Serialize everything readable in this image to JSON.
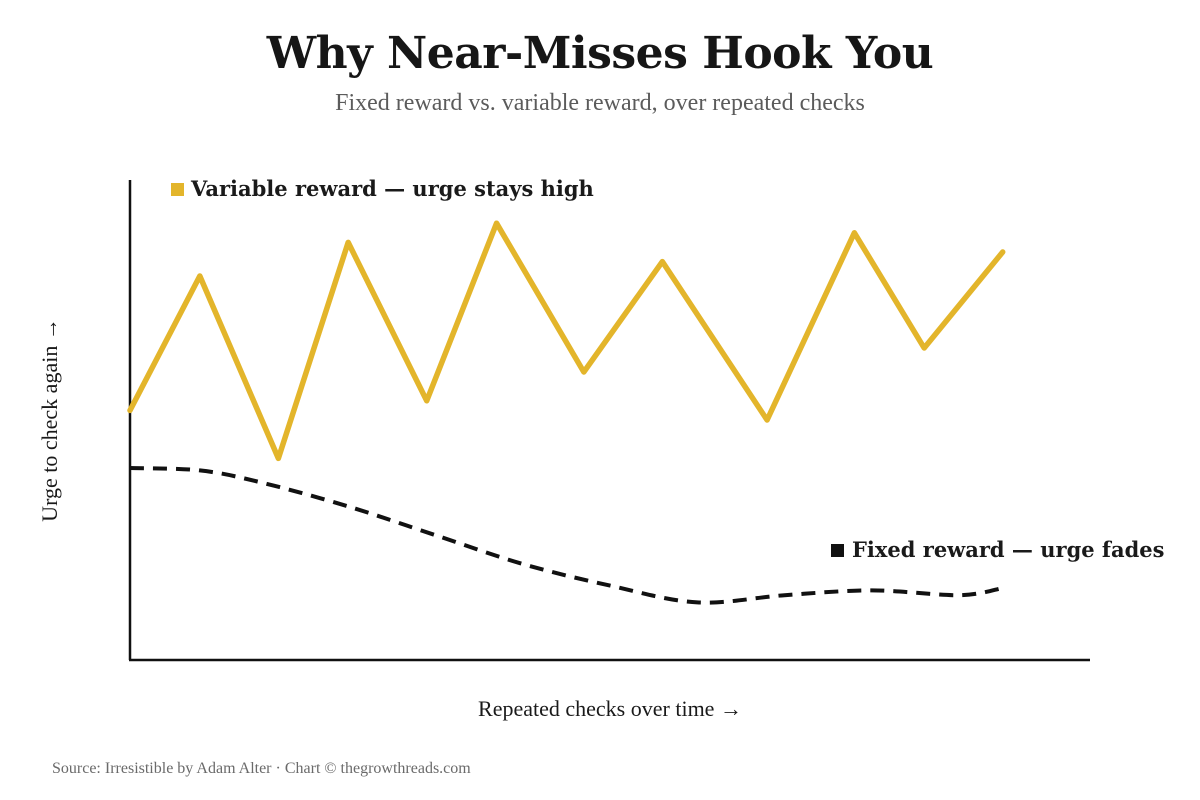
{
  "title": "Why Near-Misses Hook You",
  "subtitle": "Fixed reward vs. variable reward, over repeated checks",
  "source": "Source: Irresistible by Adam Alter · Chart © thegrowthreads.com",
  "colors": {
    "variable": "#e3b52b",
    "fixed": "#111111",
    "axis": "#111111"
  },
  "chart_data": {
    "type": "line",
    "title": "Why Near-Misses Hook You",
    "subtitle": "Fixed reward vs. variable reward, over repeated checks",
    "xlabel": "Repeated checks over time →",
    "ylabel": "Urge to check again →",
    "xlim": [
      0,
      11
    ],
    "ylim": [
      0,
      100
    ],
    "grid": false,
    "axis_ticks": false,
    "series": [
      {
        "name": "Variable reward — urge stays high",
        "style": "solid",
        "color": "#e3b52b",
        "x": [
          0,
          0.8,
          1.7,
          2.5,
          3.4,
          4.2,
          5.2,
          6.1,
          7.3,
          8.3,
          9.1,
          10
        ]
      },
      {
        "name": "Fixed reward — urge fades",
        "style": "dashed",
        "color": "#111111",
        "x": [
          0,
          0.8,
          1.5,
          2.5,
          3.5,
          4.5,
          5.5,
          6.5,
          7.5,
          8.5,
          9.5,
          10
        ]
      }
    ],
    "values": {
      "variable": [
        52,
        80,
        42,
        87,
        54,
        91,
        60,
        83,
        50,
        89,
        65,
        85
      ],
      "fixed": [
        40,
        39.5,
        37,
        32,
        26,
        20,
        15.5,
        12,
        13.5,
        14.5,
        13.5,
        15
      ]
    },
    "legend": [
      {
        "label": "Variable reward — urge stays high",
        "placement": "top-left"
      },
      {
        "label": "Fixed reward — urge fades",
        "placement": "lower-right"
      }
    ]
  }
}
